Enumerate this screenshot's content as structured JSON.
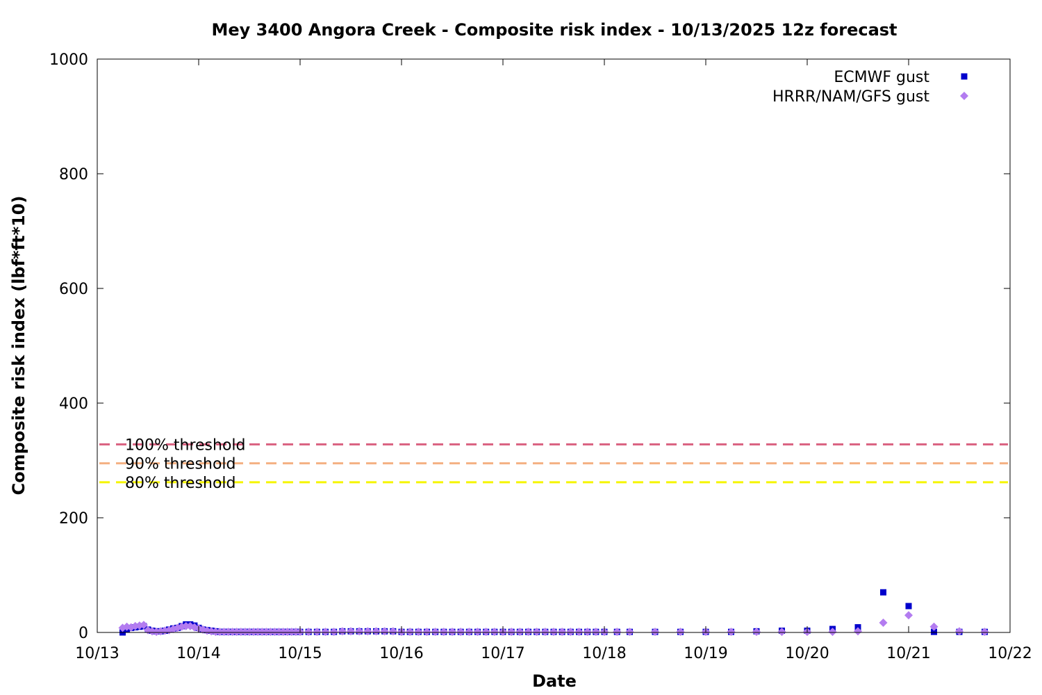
{
  "chart_data": {
    "type": "scatter",
    "title": "Mey 3400 Angora Creek - Composite risk index - 10/13/2025 12z forecast",
    "xlabel": "Date",
    "ylabel": "Composite risk index (lbf*ft*10)",
    "xlim": [
      "2025-10-13T00:00",
      "2025-10-22T00:00"
    ],
    "ylim": [
      0,
      1000
    ],
    "x_ticks": [
      "10/13",
      "10/14",
      "10/15",
      "10/16",
      "10/17",
      "10/18",
      "10/19",
      "10/20",
      "10/21",
      "10/22"
    ],
    "y_ticks": [
      0,
      200,
      400,
      600,
      800,
      1000
    ],
    "grid": false,
    "legend_position": "top-right",
    "thresholds": [
      {
        "label": "100% threshold",
        "value": 328,
        "color": "#d9607f"
      },
      {
        "label": "90% threshold",
        "value": 295,
        "color": "#f4b183"
      },
      {
        "label": "80% threshold",
        "value": 262,
        "color": "#f5f500"
      }
    ],
    "series": [
      {
        "name": "ECMWF gust",
        "color": "#0000cc",
        "marker": "square",
        "points": [
          [
            "2025-10-13T06:00",
            0
          ],
          [
            "2025-10-13T07:00",
            6
          ],
          [
            "2025-10-13T08:00",
            8
          ],
          [
            "2025-10-13T09:00",
            9
          ],
          [
            "2025-10-13T10:00",
            10
          ],
          [
            "2025-10-13T11:00",
            11
          ],
          [
            "2025-10-13T12:00",
            5
          ],
          [
            "2025-10-13T13:00",
            3
          ],
          [
            "2025-10-13T14:00",
            2
          ],
          [
            "2025-10-13T15:00",
            2
          ],
          [
            "2025-10-13T16:00",
            3
          ],
          [
            "2025-10-13T17:00",
            5
          ],
          [
            "2025-10-13T18:00",
            7
          ],
          [
            "2025-10-13T19:00",
            8
          ],
          [
            "2025-10-13T20:00",
            11
          ],
          [
            "2025-10-13T21:00",
            14
          ],
          [
            "2025-10-13T22:00",
            14
          ],
          [
            "2025-10-13T23:00",
            12
          ],
          [
            "2025-10-14T00:00",
            8
          ],
          [
            "2025-10-14T01:00",
            5
          ],
          [
            "2025-10-14T02:00",
            4
          ],
          [
            "2025-10-14T03:00",
            3
          ],
          [
            "2025-10-14T04:00",
            2
          ],
          [
            "2025-10-14T05:00",
            1
          ],
          [
            "2025-10-14T06:00",
            1
          ],
          [
            "2025-10-14T07:00",
            1
          ],
          [
            "2025-10-14T08:00",
            1
          ],
          [
            "2025-10-14T09:00",
            1
          ],
          [
            "2025-10-14T10:00",
            1
          ],
          [
            "2025-10-14T11:00",
            1
          ],
          [
            "2025-10-14T12:00",
            1
          ],
          [
            "2025-10-14T13:00",
            1
          ],
          [
            "2025-10-14T14:00",
            1
          ],
          [
            "2025-10-14T15:00",
            1
          ],
          [
            "2025-10-14T16:00",
            1
          ],
          [
            "2025-10-14T17:00",
            1
          ],
          [
            "2025-10-14T18:00",
            1
          ],
          [
            "2025-10-14T19:00",
            1
          ],
          [
            "2025-10-14T20:00",
            1
          ],
          [
            "2025-10-14T21:00",
            1
          ],
          [
            "2025-10-14T22:00",
            1
          ],
          [
            "2025-10-14T23:00",
            1
          ],
          [
            "2025-10-15T00:00",
            1
          ],
          [
            "2025-10-15T02:00",
            1
          ],
          [
            "2025-10-15T04:00",
            1
          ],
          [
            "2025-10-15T06:00",
            1
          ],
          [
            "2025-10-15T08:00",
            1
          ],
          [
            "2025-10-15T10:00",
            2
          ],
          [
            "2025-10-15T12:00",
            2
          ],
          [
            "2025-10-15T14:00",
            2
          ],
          [
            "2025-10-15T16:00",
            2
          ],
          [
            "2025-10-15T18:00",
            2
          ],
          [
            "2025-10-15T20:00",
            2
          ],
          [
            "2025-10-15T22:00",
            2
          ],
          [
            "2025-10-16T00:00",
            1
          ],
          [
            "2025-10-16T02:00",
            1
          ],
          [
            "2025-10-16T04:00",
            1
          ],
          [
            "2025-10-16T06:00",
            1
          ],
          [
            "2025-10-16T08:00",
            1
          ],
          [
            "2025-10-16T10:00",
            1
          ],
          [
            "2025-10-16T12:00",
            1
          ],
          [
            "2025-10-16T14:00",
            1
          ],
          [
            "2025-10-16T16:00",
            1
          ],
          [
            "2025-10-16T18:00",
            1
          ],
          [
            "2025-10-16T20:00",
            1
          ],
          [
            "2025-10-16T22:00",
            1
          ],
          [
            "2025-10-17T00:00",
            1
          ],
          [
            "2025-10-17T02:00",
            1
          ],
          [
            "2025-10-17T04:00",
            1
          ],
          [
            "2025-10-17T06:00",
            1
          ],
          [
            "2025-10-17T08:00",
            1
          ],
          [
            "2025-10-17T10:00",
            1
          ],
          [
            "2025-10-17T12:00",
            1
          ],
          [
            "2025-10-17T14:00",
            1
          ],
          [
            "2025-10-17T16:00",
            1
          ],
          [
            "2025-10-17T18:00",
            1
          ],
          [
            "2025-10-17T20:00",
            1
          ],
          [
            "2025-10-17T22:00",
            1
          ],
          [
            "2025-10-18T00:00",
            1
          ],
          [
            "2025-10-18T03:00",
            1
          ],
          [
            "2025-10-18T06:00",
            1
          ],
          [
            "2025-10-18T12:00",
            1
          ],
          [
            "2025-10-18T18:00",
            1
          ],
          [
            "2025-10-19T00:00",
            1
          ],
          [
            "2025-10-19T06:00",
            1
          ],
          [
            "2025-10-19T12:00",
            2
          ],
          [
            "2025-10-19T18:00",
            3
          ],
          [
            "2025-10-20T00:00",
            3
          ],
          [
            "2025-10-20T06:00",
            6
          ],
          [
            "2025-10-20T12:00",
            9
          ],
          [
            "2025-10-20T18:00",
            70
          ],
          [
            "2025-10-21T00:00",
            46
          ],
          [
            "2025-10-21T06:00",
            1
          ],
          [
            "2025-10-21T12:00",
            1
          ],
          [
            "2025-10-21T18:00",
            1
          ]
        ]
      },
      {
        "name": "HRRR/NAM/GFS gust",
        "color": "#b37cf0",
        "marker": "diamond",
        "points": [
          [
            "2025-10-13T06:00",
            8
          ],
          [
            "2025-10-13T07:00",
            10
          ],
          [
            "2025-10-13T08:00",
            9
          ],
          [
            "2025-10-13T09:00",
            11
          ],
          [
            "2025-10-13T10:00",
            12
          ],
          [
            "2025-10-13T11:00",
            13
          ],
          [
            "2025-10-13T12:00",
            4
          ],
          [
            "2025-10-13T13:00",
            2
          ],
          [
            "2025-10-13T14:00",
            1
          ],
          [
            "2025-10-13T15:00",
            2
          ],
          [
            "2025-10-13T16:00",
            3
          ],
          [
            "2025-10-13T17:00",
            4
          ],
          [
            "2025-10-13T18:00",
            6
          ],
          [
            "2025-10-13T19:00",
            8
          ],
          [
            "2025-10-13T20:00",
            10
          ],
          [
            "2025-10-13T21:00",
            11
          ],
          [
            "2025-10-13T22:00",
            11
          ],
          [
            "2025-10-13T23:00",
            9
          ],
          [
            "2025-10-14T00:00",
            7
          ],
          [
            "2025-10-14T01:00",
            5
          ],
          [
            "2025-10-14T02:00",
            3
          ],
          [
            "2025-10-14T03:00",
            2
          ],
          [
            "2025-10-14T04:00",
            1
          ],
          [
            "2025-10-14T05:00",
            1
          ],
          [
            "2025-10-14T06:00",
            1
          ],
          [
            "2025-10-14T07:00",
            1
          ],
          [
            "2025-10-14T08:00",
            1
          ],
          [
            "2025-10-14T09:00",
            1
          ],
          [
            "2025-10-14T10:00",
            1
          ],
          [
            "2025-10-14T11:00",
            1
          ],
          [
            "2025-10-14T12:00",
            1
          ],
          [
            "2025-10-14T13:00",
            1
          ],
          [
            "2025-10-14T14:00",
            1
          ],
          [
            "2025-10-14T15:00",
            1
          ],
          [
            "2025-10-14T16:00",
            1
          ],
          [
            "2025-10-14T17:00",
            1
          ],
          [
            "2025-10-14T18:00",
            1
          ],
          [
            "2025-10-14T19:00",
            1
          ],
          [
            "2025-10-14T20:00",
            1
          ],
          [
            "2025-10-14T21:00",
            1
          ],
          [
            "2025-10-14T22:00",
            1
          ],
          [
            "2025-10-14T23:00",
            1
          ],
          [
            "2025-10-15T00:00",
            1
          ],
          [
            "2025-10-15T02:00",
            1
          ],
          [
            "2025-10-15T04:00",
            1
          ],
          [
            "2025-10-15T06:00",
            1
          ],
          [
            "2025-10-15T08:00",
            1
          ],
          [
            "2025-10-15T10:00",
            2
          ],
          [
            "2025-10-15T12:00",
            2
          ],
          [
            "2025-10-15T14:00",
            2
          ],
          [
            "2025-10-15T16:00",
            2
          ],
          [
            "2025-10-15T18:00",
            2
          ],
          [
            "2025-10-15T20:00",
            2
          ],
          [
            "2025-10-15T22:00",
            2
          ],
          [
            "2025-10-16T00:00",
            1
          ],
          [
            "2025-10-16T02:00",
            1
          ],
          [
            "2025-10-16T04:00",
            1
          ],
          [
            "2025-10-16T06:00",
            1
          ],
          [
            "2025-10-16T08:00",
            1
          ],
          [
            "2025-10-16T10:00",
            1
          ],
          [
            "2025-10-16T12:00",
            1
          ],
          [
            "2025-10-16T14:00",
            1
          ],
          [
            "2025-10-16T16:00",
            1
          ],
          [
            "2025-10-16T18:00",
            1
          ],
          [
            "2025-10-16T20:00",
            1
          ],
          [
            "2025-10-16T22:00",
            1
          ],
          [
            "2025-10-17T00:00",
            1
          ],
          [
            "2025-10-17T02:00",
            1
          ],
          [
            "2025-10-17T04:00",
            1
          ],
          [
            "2025-10-17T06:00",
            1
          ],
          [
            "2025-10-17T08:00",
            1
          ],
          [
            "2025-10-17T10:00",
            1
          ],
          [
            "2025-10-17T12:00",
            1
          ],
          [
            "2025-10-17T14:00",
            1
          ],
          [
            "2025-10-17T16:00",
            1
          ],
          [
            "2025-10-17T18:00",
            1
          ],
          [
            "2025-10-17T20:00",
            1
          ],
          [
            "2025-10-17T22:00",
            1
          ],
          [
            "2025-10-18T00:00",
            1
          ],
          [
            "2025-10-18T03:00",
            1
          ],
          [
            "2025-10-18T06:00",
            1
          ],
          [
            "2025-10-18T12:00",
            1
          ],
          [
            "2025-10-18T18:00",
            1
          ],
          [
            "2025-10-19T00:00",
            1
          ],
          [
            "2025-10-19T06:00",
            1
          ],
          [
            "2025-10-19T12:00",
            1
          ],
          [
            "2025-10-19T18:00",
            1
          ],
          [
            "2025-10-20T00:00",
            1
          ],
          [
            "2025-10-20T06:00",
            1
          ],
          [
            "2025-10-20T12:00",
            2
          ],
          [
            "2025-10-20T18:00",
            17
          ],
          [
            "2025-10-21T00:00",
            30
          ],
          [
            "2025-10-21T06:00",
            10
          ],
          [
            "2025-10-21T12:00",
            2
          ],
          [
            "2025-10-21T18:00",
            1
          ]
        ]
      }
    ]
  }
}
